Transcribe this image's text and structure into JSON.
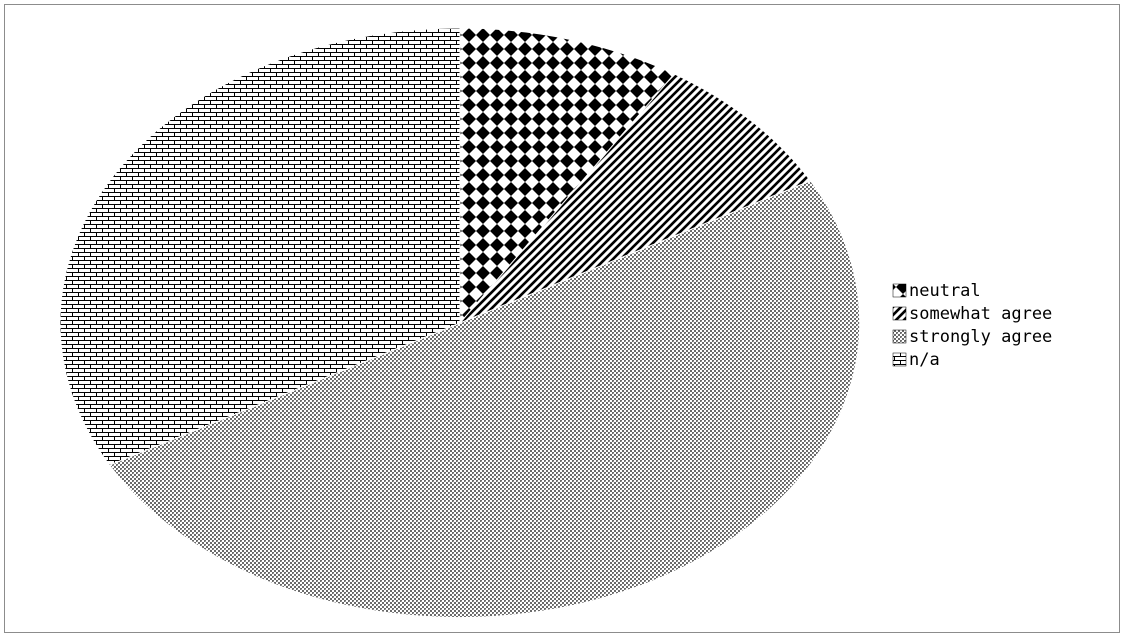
{
  "chart_data": {
    "type": "pie",
    "title": "",
    "slices": [
      {
        "label": "neutral",
        "value": 9,
        "pattern": "diamond-checker"
      },
      {
        "label": "somewhat agree",
        "value": 8,
        "pattern": "diagonal-stripes"
      },
      {
        "label": "strongly agree",
        "value": 50,
        "pattern": "fine-crosshatch"
      },
      {
        "label": "n/a",
        "value": 33,
        "pattern": "brick"
      }
    ],
    "start_angle_deg": 0,
    "direction": "clockwise",
    "legend_position": "right",
    "colors": {
      "ink": "#000000",
      "paper": "#ffffff",
      "frame": "#8c8c8c"
    }
  }
}
